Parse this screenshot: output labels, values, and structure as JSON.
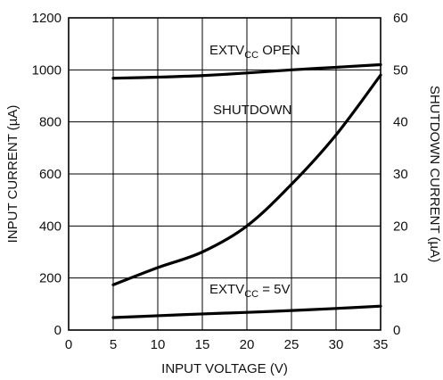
{
  "chart_data": {
    "type": "line",
    "xlabel": "INPUT VOLTAGE (V)",
    "ylabel": "INPUT CURRENT (µA)",
    "y2label": "SHUTDOWN CURRENT (µA)",
    "xlim": [
      0,
      35
    ],
    "ylim": [
      0,
      1200
    ],
    "y2lim": [
      0,
      60
    ],
    "grid": true,
    "x_ticks": [
      "0",
      "5",
      "10",
      "15",
      "20",
      "25",
      "30",
      "35"
    ],
    "y_ticks": [
      "0",
      "200",
      "400",
      "600",
      "800",
      "1000",
      "1200"
    ],
    "y2_ticks": [
      "0",
      "10",
      "20",
      "30",
      "40",
      "50",
      "60"
    ],
    "series": [
      {
        "name": "EXTVCC OPEN",
        "axis": "left",
        "x": [
          5,
          10,
          15,
          20,
          25,
          30,
          35
        ],
        "y": [
          968,
          972,
          978,
          988,
          1000,
          1010,
          1020
        ]
      },
      {
        "name": "SHUTDOWN",
        "axis": "right",
        "x": [
          5,
          10,
          15,
          20,
          25,
          30,
          35
        ],
        "y": [
          8.7,
          12,
          15,
          20,
          28,
          37.5,
          49
        ]
      },
      {
        "name": "EXTVCC = 5V",
        "axis": "left",
        "x": [
          5,
          10,
          15,
          20,
          25,
          30,
          35
        ],
        "y": [
          48,
          55,
          62,
          68,
          75,
          83,
          92
        ]
      }
    ],
    "annotations": [
      {
        "pre": "EXTV",
        "sub": "CC",
        "post": " OPEN",
        "at": [
          15.8,
          1060
        ]
      },
      {
        "pre": "SHUTDOWN",
        "sub": "",
        "post": "",
        "at": [
          16.2,
          830
        ]
      },
      {
        "pre": "EXTV",
        "sub": "CC",
        "post": " = 5V",
        "at": [
          15.8,
          140
        ]
      }
    ]
  }
}
